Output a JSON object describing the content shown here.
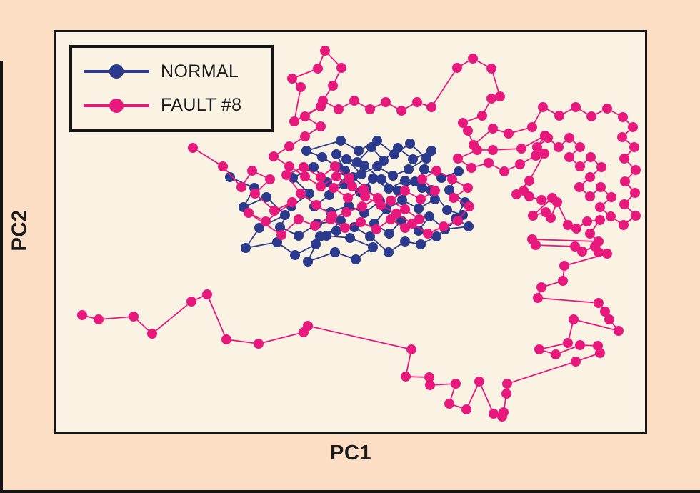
{
  "figure": {
    "xlabel": "PC1",
    "ylabel": "PC2",
    "background_page": "#fbdec3",
    "background_plot": "#faf3e4",
    "frame_color": "#151515"
  },
  "chart_data": {
    "type": "line",
    "xlabel": "PC1",
    "ylabel": "PC2",
    "x_ticks": [],
    "y_ticks": [],
    "grid": false,
    "legend_position": "top-left",
    "marker_radius": 7,
    "line_width": 1.8,
    "series": [
      {
        "name": "NORMAL",
        "color": "#2b3a8c",
        "points": [
          [
            322,
            248
          ],
          [
            356,
            263
          ],
          [
            341,
            290
          ],
          [
            373,
            276
          ],
          [
            399,
            301
          ],
          [
            363,
            319
          ],
          [
            344,
            347
          ],
          [
            388,
            339
          ],
          [
            413,
            357
          ],
          [
            442,
            342
          ],
          [
            431,
            366
          ],
          [
            469,
            353
          ],
          [
            498,
            363
          ],
          [
            522,
            346
          ],
          [
            490,
            333
          ],
          [
            457,
            330
          ],
          [
            477,
            309
          ],
          [
            444,
            313
          ],
          [
            418,
            330
          ],
          [
            392,
            318
          ],
          [
            408,
            289
          ],
          [
            433,
            271
          ],
          [
            410,
            249
          ],
          [
            439,
            234
          ],
          [
            458,
            255
          ],
          [
            483,
            239
          ],
          [
            471,
            216
          ],
          [
            500,
            227
          ],
          [
            520,
            206
          ],
          [
            537,
            225
          ],
          [
            557,
            207
          ],
          [
            578,
            223
          ],
          [
            604,
            211
          ],
          [
            594,
            237
          ],
          [
            618,
            249
          ],
          [
            642,
            240
          ],
          [
            629,
            266
          ],
          [
            651,
            283
          ],
          [
            638,
            306
          ],
          [
            656,
            317
          ],
          [
            623,
            321
          ],
          [
            601,
            303
          ],
          [
            586,
            323
          ],
          [
            562,
            309
          ],
          [
            545,
            327
          ],
          [
            524,
            313
          ],
          [
            541,
            293
          ],
          [
            563,
            280
          ],
          [
            586,
            292
          ],
          [
            609,
            279
          ],
          [
            591,
            263
          ],
          [
            567,
            253
          ],
          [
            544,
            264
          ],
          [
            522,
            250
          ],
          [
            504,
            269
          ],
          [
            482,
            258
          ],
          [
            461,
            273
          ],
          [
            440,
            289
          ],
          [
            463,
            297
          ],
          [
            488,
            288
          ],
          [
            510,
            298
          ],
          [
            532,
            282
          ],
          [
            513,
            264
          ],
          [
            494,
            248
          ],
          [
            473,
            234
          ],
          [
            451,
            220
          ],
          [
            429,
            211
          ],
          [
            477,
            197
          ],
          [
            502,
            211
          ],
          [
            528,
            197
          ],
          [
            552,
            216
          ],
          [
            574,
            201
          ],
          [
            597,
            222
          ],
          [
            572,
            237
          ],
          [
            550,
            246
          ],
          [
            528,
            233
          ],
          [
            506,
            244
          ],
          [
            485,
            223
          ],
          [
            510,
            232
          ],
          [
            534,
            251
          ],
          [
            557,
            267
          ],
          [
            581,
            254
          ],
          [
            604,
            266
          ],
          [
            626,
            294
          ],
          [
            648,
            301
          ],
          [
            611,
            331
          ],
          [
            589,
            342
          ],
          [
            567,
            338
          ],
          [
            544,
            353
          ],
          [
            518,
            331
          ],
          [
            496,
            318
          ],
          [
            471,
            323
          ],
          [
            448,
            331
          ]
        ]
      },
      {
        "name": "FAULT #8",
        "color": "#e8197d",
        "points": [
          [
            270,
            207
          ],
          [
            312,
            233
          ],
          [
            338,
            262
          ],
          [
            353,
            239
          ],
          [
            378,
            251
          ],
          [
            357,
            271
          ],
          [
            384,
            295
          ],
          [
            409,
            283
          ],
          [
            372,
            310
          ],
          [
            348,
            298
          ],
          [
            394,
            329
          ],
          [
            418,
            307
          ],
          [
            441,
            316
          ],
          [
            465,
            302
          ],
          [
            443,
            287
          ],
          [
            421,
            271
          ],
          [
            401,
            245
          ],
          [
            425,
            234
          ],
          [
            449,
            248
          ],
          [
            469,
            233
          ],
          [
            489,
            249
          ],
          [
            467,
            263
          ],
          [
            487,
            277
          ],
          [
            509,
            265
          ],
          [
            529,
            277
          ],
          [
            507,
            289
          ],
          [
            485,
            297
          ],
          [
            463,
            307
          ],
          [
            483,
            319
          ],
          [
            505,
            311
          ],
          [
            527,
            321
          ],
          [
            547,
            307
          ],
          [
            567,
            319
          ],
          [
            587,
            307
          ],
          [
            567,
            293
          ],
          [
            547,
            281
          ],
          [
            567,
            267
          ],
          [
            589,
            279
          ],
          [
            609,
            267
          ],
          [
            591,
            251
          ],
          [
            611,
            239
          ],
          [
            633,
            251
          ],
          [
            655,
            263
          ],
          [
            635,
            277
          ],
          [
            657,
            289
          ],
          [
            641,
            309
          ],
          [
            621,
            317
          ],
          [
            599,
            327
          ],
          [
            577,
            313
          ],
          [
            555,
            299
          ],
          [
            533,
            287
          ],
          [
            511,
            275
          ],
          [
            493,
            261
          ],
          [
            471,
            247
          ],
          [
            449,
            261
          ],
          [
            427,
            247
          ],
          [
            405,
            233
          ],
          [
            383,
            219
          ],
          [
            405,
            205
          ],
          [
            427,
            191
          ],
          [
            449,
            177
          ],
          [
            427,
            163
          ],
          [
            449,
            149
          ],
          [
            412,
            170
          ],
          [
            421,
            122
          ],
          [
            409,
            110
          ],
          [
            445,
            96
          ],
          [
            455,
            71
          ],
          [
            478,
            95
          ],
          [
            466,
            120
          ],
          [
            452,
            141
          ],
          [
            474,
            153
          ],
          [
            496,
            141
          ],
          [
            518,
            153
          ],
          [
            540,
            143
          ],
          [
            562,
            155
          ],
          [
            584,
            143
          ],
          [
            604,
            150
          ],
          [
            640,
            95
          ],
          [
            662,
            82
          ],
          [
            688,
            96
          ],
          [
            700,
            135
          ],
          [
            688,
            138
          ],
          [
            675,
            162
          ],
          [
            648,
            172
          ],
          [
            655,
            183
          ],
          [
            663,
            203
          ],
          [
            690,
            180
          ],
          [
            712,
            187
          ],
          [
            745,
            178
          ],
          [
            760,
            150
          ],
          [
            783,
            162
          ],
          [
            806,
            150
          ],
          [
            828,
            163
          ],
          [
            850,
            152
          ],
          [
            872,
            164
          ],
          [
            886,
            178
          ],
          [
            871,
            192
          ],
          [
            888,
            206
          ],
          [
            874,
            222
          ],
          [
            890,
            238
          ],
          [
            875,
            254
          ],
          [
            889,
            270
          ],
          [
            874,
            286
          ],
          [
            890,
            302
          ],
          [
            873,
            315
          ],
          [
            855,
            303
          ],
          [
            840,
            290
          ],
          [
            856,
            276
          ],
          [
            841,
            262
          ],
          [
            826,
            275
          ],
          [
            811,
            262
          ],
          [
            826,
            248
          ],
          [
            842,
            234
          ],
          [
            827,
            220
          ],
          [
            812,
            233
          ],
          [
            797,
            220
          ],
          [
            812,
            206
          ],
          [
            797,
            193
          ],
          [
            782,
            206
          ],
          [
            767,
            193
          ],
          [
            752,
            206
          ],
          [
            763,
            190
          ],
          [
            730,
            208
          ],
          [
            690,
            210
          ],
          [
            668,
            210
          ],
          [
            641,
            222
          ],
          [
            660,
            235
          ],
          [
            684,
            228
          ],
          [
            706,
            240
          ],
          [
            728,
            230
          ],
          [
            750,
            218
          ],
          [
            762,
            215
          ],
          [
            741,
            253
          ],
          [
            723,
            272
          ],
          [
            733,
            267
          ],
          [
            741,
            275
          ],
          [
            758,
            280
          ],
          [
            773,
            277
          ],
          [
            746,
            302
          ],
          [
            764,
            297
          ],
          [
            771,
            305
          ],
          [
            780,
            283
          ],
          [
            795,
            315
          ],
          [
            807,
            320
          ],
          [
            822,
            310
          ],
          [
            840,
            308
          ],
          [
            826,
            327
          ],
          [
            838,
            338
          ],
          [
            745,
            335
          ],
          [
            750,
            343
          ],
          [
            805,
            345
          ],
          [
            815,
            352
          ],
          [
            833,
            345
          ],
          [
            838,
            353
          ],
          [
            850,
            355
          ],
          [
            790,
            372
          ],
          [
            788,
            393
          ],
          [
            758,
            402
          ],
          [
            753,
            417
          ],
          [
            838,
            424
          ],
          [
            847,
            436
          ],
          [
            853,
            447
          ],
          [
            866,
            463
          ],
          [
            803,
            447
          ],
          [
            795,
            480
          ],
          [
            755,
            489
          ],
          [
            778,
            496
          ],
          [
            812,
            483
          ],
          [
            837,
            484
          ],
          [
            840,
            494
          ],
          [
            806,
            506
          ],
          [
            710,
            537
          ],
          [
            709,
            551
          ],
          [
            705,
            577
          ],
          [
            703,
            583
          ],
          [
            691,
            579
          ],
          [
            671,
            534
          ],
          [
            653,
            573
          ],
          [
            629,
            565
          ],
          [
            638,
            537
          ],
          [
            602,
            539
          ],
          [
            601,
            528
          ],
          [
            568,
            527
          ],
          [
            576,
            489
          ],
          [
            431,
            456
          ],
          [
            425,
            465
          ],
          [
            362,
            481
          ],
          [
            317,
            475
          ],
          [
            290,
            412
          ],
          [
            268,
            422
          ],
          [
            213,
            467
          ],
          [
            187,
            443
          ],
          [
            138,
            447
          ],
          [
            115,
            441
          ]
        ]
      }
    ]
  }
}
